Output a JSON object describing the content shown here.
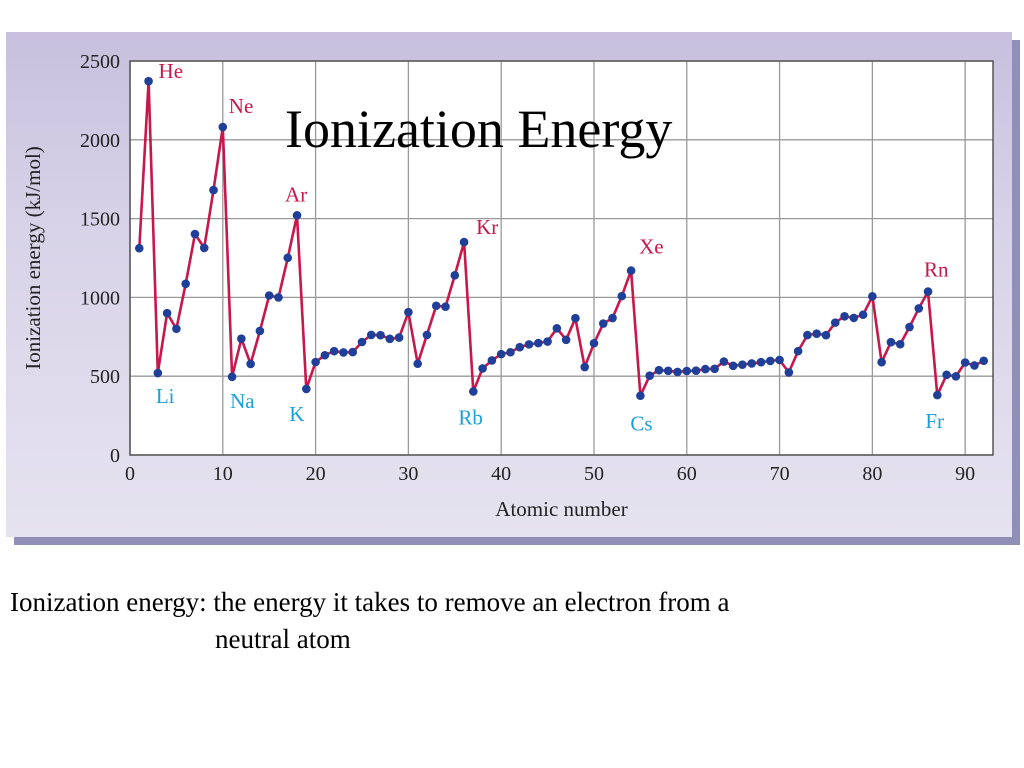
{
  "slide": {
    "title": "Ionization Energy",
    "caption_line1": "Ionization energy: the energy it takes to remove an electron from a",
    "caption_line2": "neutral atom"
  },
  "colors": {
    "line": "#c8174a",
    "marker": "#1f3f99",
    "noble_label": "#c8174a",
    "alkali_label": "#1aa0d8",
    "grid": "#9a9a9a",
    "plot_bg": "#ffffff"
  },
  "chart_data": {
    "type": "line",
    "title": "Ionization Energy",
    "xlabel": "Atomic number",
    "ylabel": "Ionization energy (kJ/mol)",
    "xlim": [
      0,
      93
    ],
    "ylim": [
      0,
      2500
    ],
    "xticks": [
      0,
      10,
      20,
      30,
      40,
      50,
      60,
      70,
      80,
      90
    ],
    "yticks": [
      0,
      500,
      1000,
      1500,
      2000,
      2500
    ],
    "grid": true,
    "series": [
      {
        "x": [
          1,
          2,
          3,
          4,
          5,
          6,
          7,
          8,
          9,
          10,
          11,
          12,
          13,
          14,
          15,
          16,
          17,
          18,
          19,
          20,
          21,
          22,
          23,
          24,
          25,
          26,
          27,
          28,
          29,
          30,
          31,
          32,
          33,
          34,
          35,
          36,
          37,
          38,
          39,
          40,
          41,
          42,
          43,
          44,
          45,
          46,
          47,
          48,
          49,
          50,
          51,
          52,
          53,
          54,
          55,
          56,
          57,
          58,
          59,
          60,
          61,
          62,
          63,
          64,
          65,
          66,
          67,
          68,
          69,
          70,
          71,
          72,
          73,
          74,
          75,
          76,
          77,
          78,
          79,
          80,
          81,
          82,
          83,
          84,
          85,
          86,
          87,
          88,
          89,
          90,
          91,
          92
        ],
        "y": [
          1312,
          2372,
          520,
          900,
          801,
          1086,
          1402,
          1314,
          1681,
          2081,
          496,
          738,
          578,
          787,
          1012,
          1000,
          1251,
          1521,
          419,
          590,
          633,
          659,
          651,
          653,
          717,
          762,
          760,
          737,
          745,
          906,
          579,
          762,
          947,
          941,
          1140,
          1351,
          403,
          549,
          600,
          640,
          652,
          684,
          702,
          710,
          720,
          804,
          731,
          868,
          558,
          709,
          834,
          869,
          1008,
          1170,
          376,
          503,
          538,
          534,
          527,
          533,
          535,
          545,
          547,
          593,
          566,
          573,
          581,
          589,
          597,
          603,
          524,
          659,
          761,
          770,
          760,
          840,
          880,
          870,
          890,
          1007,
          589,
          716,
          703,
          812,
          930,
          1037,
          380,
          509,
          499,
          587,
          568,
          598
        ]
      }
    ],
    "annotations": [
      {
        "text": "He",
        "x": 2,
        "y": 2372,
        "group": "noble"
      },
      {
        "text": "Ne",
        "x": 10,
        "y": 2081,
        "group": "noble"
      },
      {
        "text": "Ar",
        "x": 18,
        "y": 1521,
        "group": "noble"
      },
      {
        "text": "Kr",
        "x": 36,
        "y": 1351,
        "group": "noble"
      },
      {
        "text": "Xe",
        "x": 54,
        "y": 1170,
        "group": "noble"
      },
      {
        "text": "Rn",
        "x": 86,
        "y": 1037,
        "group": "noble"
      },
      {
        "text": "Li",
        "x": 3,
        "y": 520,
        "group": "alkali"
      },
      {
        "text": "Na",
        "x": 11,
        "y": 496,
        "group": "alkali"
      },
      {
        "text": "K",
        "x": 19,
        "y": 419,
        "group": "alkali"
      },
      {
        "text": "Rb",
        "x": 37,
        "y": 403,
        "group": "alkali"
      },
      {
        "text": "Cs",
        "x": 55,
        "y": 376,
        "group": "alkali"
      },
      {
        "text": "Fr",
        "x": 87,
        "y": 380,
        "group": "alkali"
      }
    ]
  }
}
